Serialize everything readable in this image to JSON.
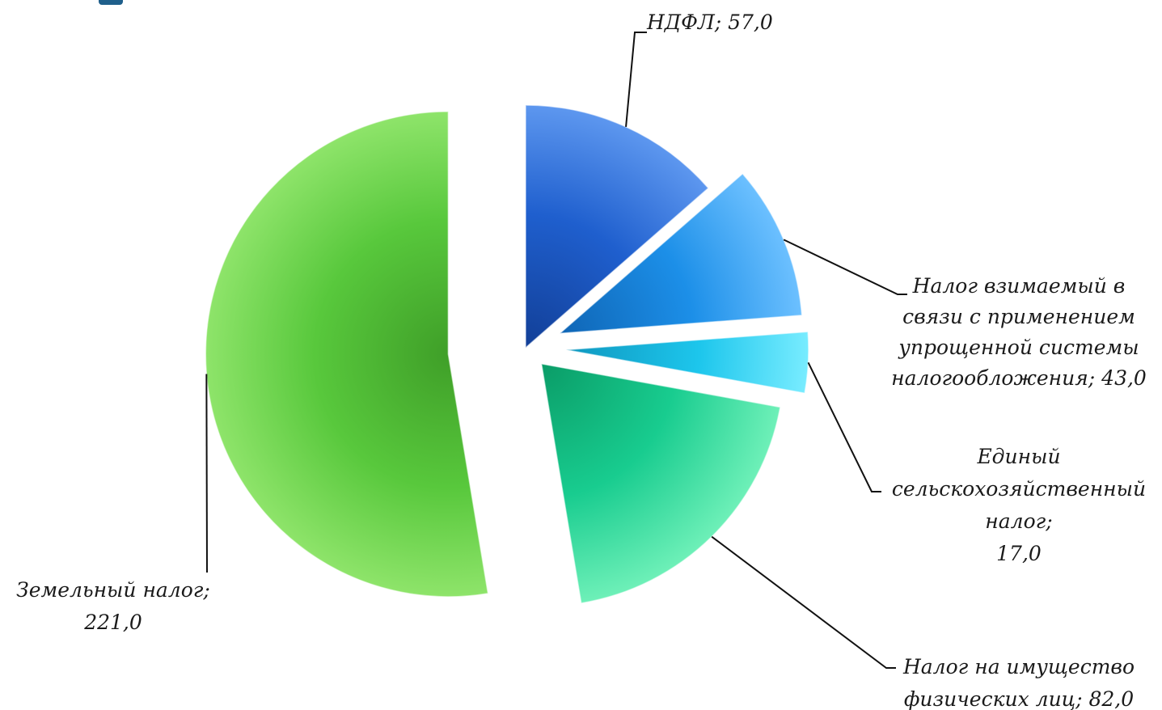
{
  "chart_data": {
    "type": "pie",
    "slices": [
      {
        "name": "НДФЛ",
        "value": 57.0,
        "label": "НДФЛ;  57,0",
        "color": "#1f5fce",
        "color_light": "#5d97ef",
        "color_dark": "#123f97"
      },
      {
        "name": "Налог взимаемый в связи с применением упрощенной системы налогообложения",
        "value": 43.0,
        "label": "Налог взимаемый в связи с применением упрощенной системы налогообложения;   43,0",
        "color": "#1c8fe8",
        "color_light": "#6cc0ff",
        "color_dark": "#0f65b5"
      },
      {
        "name": "Единый сельскохозяйственный налог",
        "value": 17.0,
        "label": "Единый сельскохозяйственный налог; 17,0",
        "color": "#1dc6ec",
        "color_light": "#78ecff",
        "color_dark": "#0f97bf"
      },
      {
        "name": "Налог на имущество физических лиц",
        "value": 82.0,
        "label": "Налог на имущество физических лиц; 82,0",
        "color": "#18cc8f",
        "color_light": "#6ef0b8",
        "color_dark": "#0a9c67"
      },
      {
        "name": "Земельный налог",
        "value": 221.0,
        "label": "Земельный налог; 221,0",
        "color": "#58c83c",
        "color_light": "#8ee46a",
        "color_dark": "#3f9f28"
      }
    ],
    "labels": {
      "ndfl": [
        "НДФЛ;  57,0"
      ],
      "usn": [
        "Налог взимаемый в",
        "связи с применением",
        "упрощенной системы",
        "налогообложения;   43,0"
      ],
      "eshn": [
        "Единый",
        "сельскохозяйственный",
        "налог;",
        "17,0"
      ],
      "property": [
        "Налог на имущество",
        "физических лиц; 82,0"
      ],
      "land": [
        "Земельный налог;",
        "221,0"
      ]
    },
    "legend": "none"
  }
}
